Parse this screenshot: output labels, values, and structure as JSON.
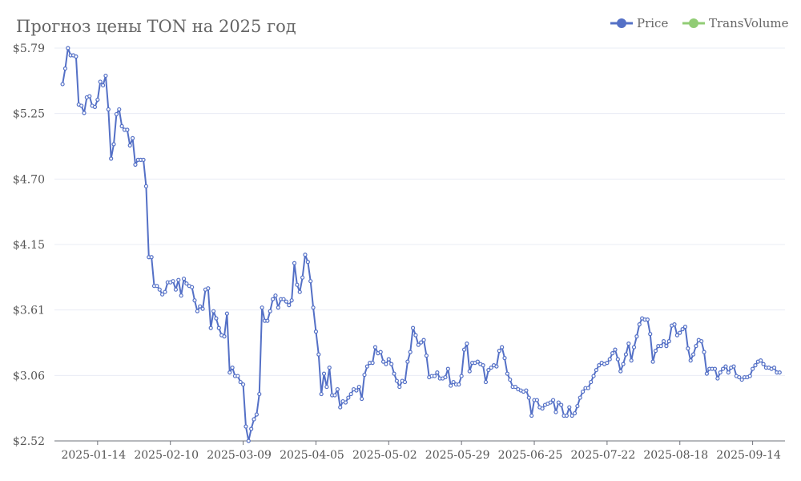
{
  "chart_data": {
    "type": "line",
    "title": "Прогноз цены TON на 2025 год",
    "xlabel": "",
    "ylabel": "",
    "ylim": [
      2.52,
      5.79
    ],
    "y_ticks": [
      "$2.52",
      "$3.06",
      "$3.61",
      "$4.15",
      "$4.70",
      "$5.25",
      "$5.79"
    ],
    "x_ticks": [
      "2025-01-14",
      "2025-02-10",
      "2025-03-09",
      "2025-04-05",
      "2025-05-02",
      "2025-05-29",
      "2025-06-25",
      "2025-07-22",
      "2025-08-18",
      "2025-09-14"
    ],
    "x_start": "2025-01-01",
    "grid": true,
    "legend_position": "top-right",
    "colors": {
      "price": "#5470c6",
      "trans_volume": "#91cc75"
    },
    "series": [
      {
        "name": "Price",
        "color": "#5470c6",
        "values": [
          5.49,
          5.62,
          5.79,
          5.73,
          5.73,
          5.72,
          5.32,
          5.31,
          5.25,
          5.38,
          5.39,
          5.31,
          5.3,
          5.36,
          5.51,
          5.48,
          5.56,
          5.28,
          4.87,
          4.99,
          5.24,
          5.28,
          5.14,
          5.11,
          5.11,
          4.98,
          5.04,
          4.82,
          4.86,
          4.86,
          4.86,
          4.64,
          4.05,
          4.05,
          3.81,
          3.81,
          3.78,
          3.74,
          3.76,
          3.84,
          3.84,
          3.85,
          3.78,
          3.86,
          3.73,
          3.87,
          3.83,
          3.81,
          3.8,
          3.69,
          3.6,
          3.64,
          3.62,
          3.78,
          3.79,
          3.46,
          3.6,
          3.54,
          3.46,
          3.4,
          3.39,
          3.58,
          3.09,
          3.13,
          3.06,
          3.06,
          3.01,
          2.99,
          2.64,
          2.52,
          2.62,
          2.7,
          2.74,
          2.91,
          3.63,
          3.52,
          3.52,
          3.6,
          3.7,
          3.73,
          3.63,
          3.7,
          3.7,
          3.68,
          3.65,
          3.69,
          4.0,
          3.82,
          3.76,
          3.88,
          4.07,
          4.01,
          3.85,
          3.63,
          3.43,
          3.24,
          2.91,
          3.08,
          2.97,
          3.13,
          2.9,
          2.9,
          2.95,
          2.8,
          2.85,
          2.84,
          2.88,
          2.91,
          2.95,
          2.94,
          2.97,
          2.87,
          3.07,
          3.14,
          3.17,
          3.17,
          3.3,
          3.25,
          3.26,
          3.18,
          3.16,
          3.2,
          3.16,
          3.08,
          3.02,
          2.97,
          3.02,
          3.01,
          3.18,
          3.26,
          3.46,
          3.4,
          3.32,
          3.34,
          3.36,
          3.23,
          3.05,
          3.06,
          3.06,
          3.09,
          3.04,
          3.04,
          3.05,
          3.12,
          2.98,
          3.01,
          2.99,
          2.99,
          3.06,
          3.28,
          3.33,
          3.1,
          3.17,
          3.17,
          3.18,
          3.16,
          3.15,
          3.01,
          3.11,
          3.13,
          3.15,
          3.14,
          3.27,
          3.3,
          3.21,
          3.08,
          3.03,
          2.97,
          2.97,
          2.95,
          2.94,
          2.93,
          2.94,
          2.88,
          2.73,
          2.86,
          2.86,
          2.8,
          2.79,
          2.82,
          2.83,
          2.84,
          2.86,
          2.76,
          2.84,
          2.82,
          2.73,
          2.73,
          2.8,
          2.73,
          2.75,
          2.81,
          2.88,
          2.93,
          2.96,
          2.96,
          3.01,
          3.06,
          3.11,
          3.15,
          3.17,
          3.16,
          3.17,
          3.2,
          3.25,
          3.28,
          3.2,
          3.1,
          3.16,
          3.24,
          3.33,
          3.19,
          3.3,
          3.39,
          3.49,
          3.54,
          3.53,
          3.53,
          3.41,
          3.18,
          3.27,
          3.31,
          3.31,
          3.35,
          3.31,
          3.35,
          3.48,
          3.49,
          3.4,
          3.42,
          3.45,
          3.47,
          3.29,
          3.19,
          3.24,
          3.31,
          3.36,
          3.35,
          3.26,
          3.08,
          3.12,
          3.12,
          3.12,
          3.04,
          3.09,
          3.12,
          3.14,
          3.09,
          3.13,
          3.14,
          3.06,
          3.05,
          3.03,
          3.05,
          3.05,
          3.06,
          3.12,
          3.15,
          3.18,
          3.19,
          3.16,
          3.13,
          3.13,
          3.12,
          3.13,
          3.09,
          3.09
        ]
      },
      {
        "name": "TransVolume",
        "color": "#91cc75",
        "values": []
      }
    ]
  }
}
